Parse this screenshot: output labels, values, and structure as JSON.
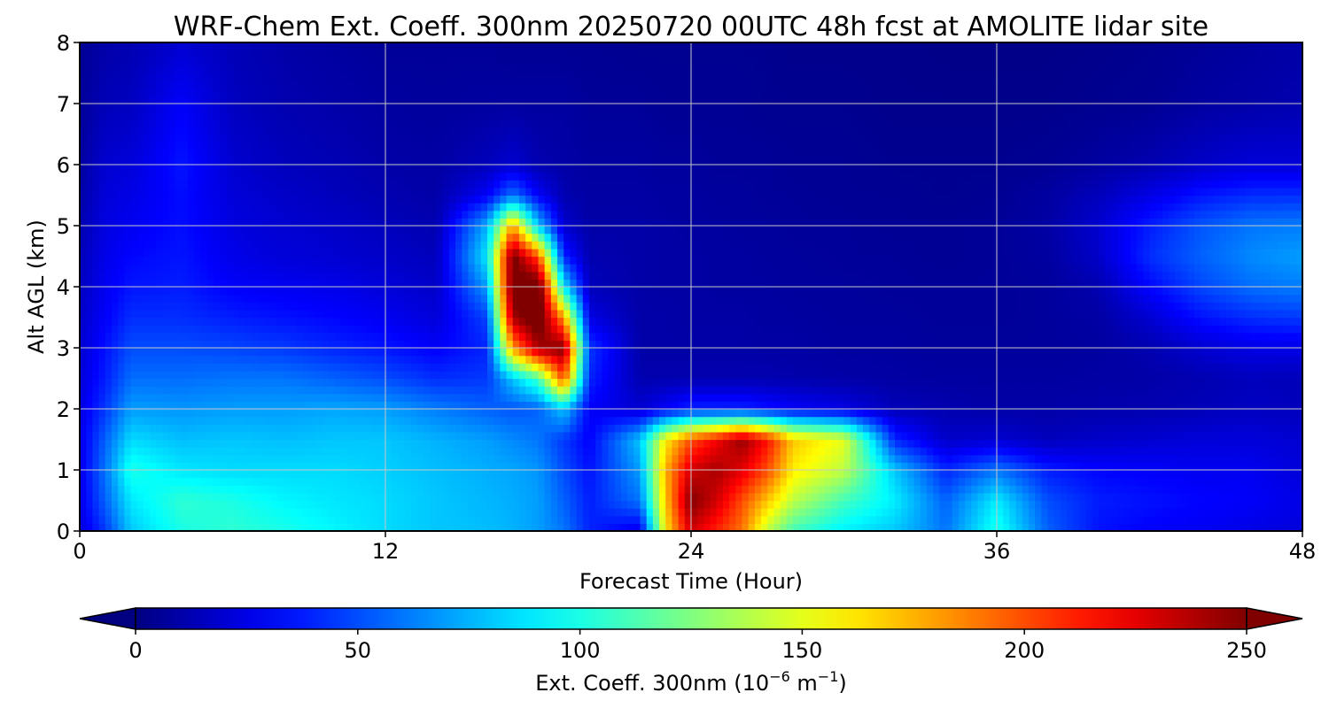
{
  "chart_data": {
    "type": "heatmap",
    "title": "WRF-Chem Ext. Coeff. 300nm  20250720 00UTC 48h fcst at AMOLITE lidar site",
    "xlabel": "Forecast Time (Hour)",
    "ylabel": "Alt AGL (km)",
    "xlim": [
      0,
      48
    ],
    "ylim": [
      0,
      8
    ],
    "x_ticks": [
      "0",
      "12",
      "24",
      "36",
      "48"
    ],
    "y_ticks": [
      "0",
      "1",
      "2",
      "3",
      "4",
      "5",
      "6",
      "7",
      "8"
    ],
    "grid": true,
    "colormap": "jet",
    "colorbar": {
      "label_prefix": "Ext. Coeff. 300nm  (10",
      "label_exp1": "−6",
      "label_mid": " m",
      "label_exp2": "−1",
      "label_suffix": ")",
      "min": 0,
      "max": 250,
      "ticks": [
        "0",
        "50",
        "100",
        "150",
        "200",
        "250"
      ],
      "extend": "both"
    },
    "hours": [
      0,
      1,
      2,
      4,
      6,
      8,
      10,
      12,
      14,
      16,
      17,
      18,
      19,
      20,
      22,
      23,
      24,
      25,
      26,
      27,
      28,
      30,
      32,
      34,
      36,
      38,
      40,
      42,
      44,
      46,
      48
    ],
    "altitudes_km": [
      0,
      0.5,
      1,
      1.5,
      2,
      2.5,
      3,
      3.5,
      4,
      4.5,
      5,
      5.5,
      6,
      7,
      8
    ],
    "values": [
      [
        22,
        25,
        25,
        25,
        24,
        22,
        20,
        18,
        16,
        14,
        12,
        10,
        8,
        6,
        5
      ],
      [
        45,
        55,
        60,
        55,
        45,
        38,
        35,
        30,
        28,
        26,
        24,
        22,
        20,
        14,
        10
      ],
      [
        80,
        88,
        100,
        85,
        70,
        58,
        50,
        42,
        36,
        32,
        28,
        25,
        22,
        16,
        12
      ],
      [
        100,
        105,
        88,
        78,
        68,
        58,
        50,
        42,
        38,
        36,
        34,
        34,
        36,
        30,
        20
      ],
      [
        105,
        100,
        85,
        80,
        70,
        60,
        48,
        38,
        30,
        26,
        24,
        22,
        20,
        16,
        14
      ],
      [
        100,
        92,
        85,
        78,
        70,
        60,
        45,
        35,
        28,
        22,
        20,
        18,
        15,
        12,
        10
      ],
      [
        92,
        88,
        85,
        80,
        72,
        55,
        40,
        32,
        26,
        20,
        18,
        15,
        13,
        10,
        8
      ],
      [
        85,
        85,
        82,
        80,
        70,
        50,
        36,
        28,
        22,
        18,
        15,
        12,
        10,
        8,
        6
      ],
      [
        80,
        80,
        78,
        75,
        62,
        42,
        30,
        22,
        18,
        15,
        12,
        10,
        9,
        7,
        6
      ],
      [
        78,
        76,
        74,
        70,
        55,
        45,
        40,
        48,
        70,
        90,
        75,
        30,
        15,
        8,
        6
      ],
      [
        75,
        74,
        72,
        65,
        52,
        80,
        180,
        240,
        260,
        255,
        180,
        60,
        20,
        8,
        5
      ],
      [
        70,
        70,
        68,
        60,
        55,
        110,
        240,
        265,
        265,
        200,
        80,
        30,
        12,
        8,
        5
      ],
      [
        60,
        55,
        50,
        45,
        80,
        200,
        250,
        180,
        90,
        40,
        20,
        12,
        10,
        8,
        5
      ],
      [
        40,
        38,
        35,
        30,
        30,
        40,
        45,
        25,
        15,
        12,
        10,
        9,
        8,
        6,
        5
      ],
      [
        25,
        60,
        70,
        80,
        20,
        12,
        10,
        10,
        10,
        10,
        10,
        9,
        8,
        6,
        4
      ],
      [
        160,
        170,
        175,
        160,
        30,
        12,
        10,
        10,
        9,
        9,
        9,
        8,
        7,
        5,
        4
      ],
      [
        230,
        250,
        230,
        200,
        40,
        12,
        10,
        9,
        9,
        9,
        8,
        8,
        7,
        5,
        4
      ],
      [
        210,
        230,
        240,
        220,
        40,
        12,
        10,
        9,
        8,
        8,
        8,
        7,
        6,
        5,
        4
      ],
      [
        190,
        200,
        225,
        245,
        40,
        12,
        10,
        9,
        8,
        8,
        7,
        7,
        6,
        5,
        4
      ],
      [
        140,
        170,
        200,
        215,
        35,
        12,
        9,
        8,
        8,
        7,
        7,
        6,
        6,
        4,
        4
      ],
      [
        110,
        140,
        160,
        170,
        30,
        11,
        9,
        8,
        7,
        7,
        6,
        6,
        5,
        4,
        3
      ],
      [
        90,
        110,
        140,
        150,
        25,
        10,
        8,
        7,
        7,
        6,
        6,
        5,
        5,
        4,
        3
      ],
      [
        80,
        90,
        80,
        40,
        14,
        9,
        8,
        7,
        6,
        6,
        5,
        5,
        4,
        3,
        3
      ],
      [
        60,
        55,
        40,
        18,
        12,
        8,
        7,
        6,
        6,
        5,
        5,
        4,
        4,
        3,
        2
      ],
      [
        100,
        90,
        60,
        20,
        10,
        8,
        7,
        6,
        6,
        6,
        6,
        5,
        4,
        3,
        2
      ],
      [
        55,
        50,
        38,
        15,
        10,
        8,
        7,
        7,
        7,
        8,
        9,
        8,
        5,
        3,
        2
      ],
      [
        35,
        38,
        32,
        18,
        11,
        9,
        8,
        9,
        12,
        18,
        20,
        15,
        8,
        4,
        3
      ],
      [
        30,
        35,
        30,
        20,
        12,
        10,
        12,
        20,
        32,
        42,
        38,
        25,
        12,
        5,
        4
      ],
      [
        28,
        32,
        28,
        22,
        14,
        12,
        20,
        35,
        48,
        55,
        52,
        36,
        18,
        8,
        6
      ],
      [
        25,
        30,
        28,
        22,
        16,
        15,
        25,
        42,
        58,
        65,
        60,
        42,
        22,
        10,
        8
      ],
      [
        22,
        25,
        22,
        20,
        15,
        14,
        25,
        45,
        62,
        70,
        62,
        42,
        22,
        12,
        10
      ]
    ]
  }
}
